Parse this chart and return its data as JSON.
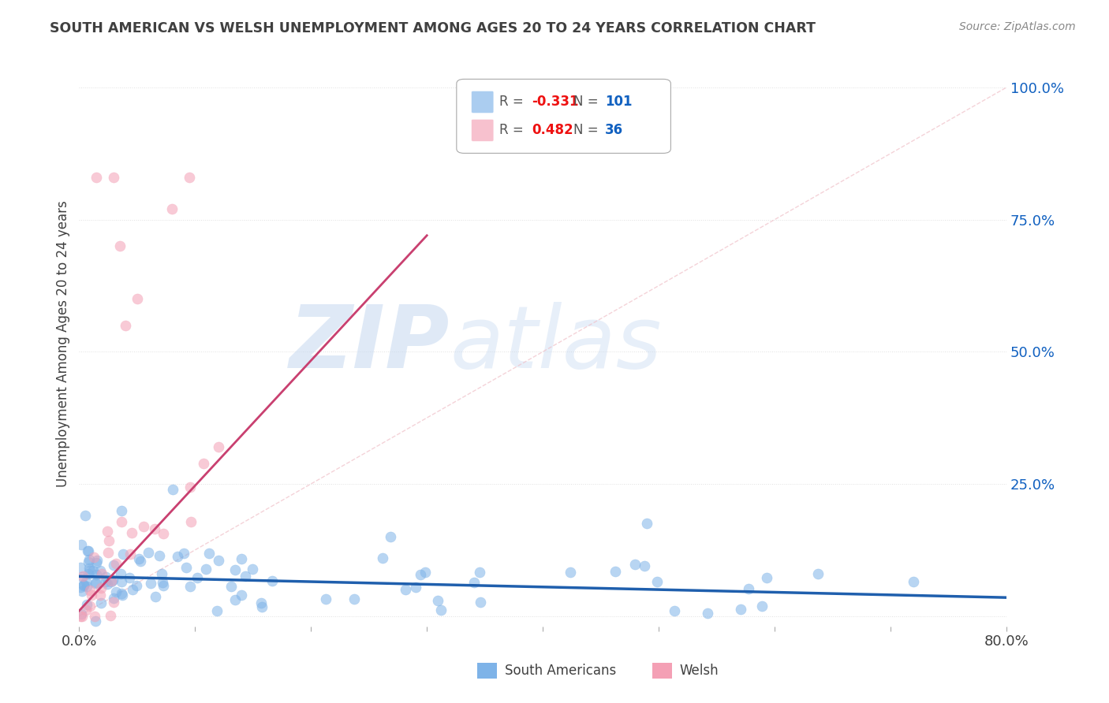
{
  "title": "SOUTH AMERICAN VS WELSH UNEMPLOYMENT AMONG AGES 20 TO 24 YEARS CORRELATION CHART",
  "source": "Source: ZipAtlas.com",
  "ylabel": "Unemployment Among Ages 20 to 24 years",
  "xlim": [
    0.0,
    0.8
  ],
  "ylim": [
    -0.02,
    1.05
  ],
  "blue_color": "#7EB3E8",
  "pink_color": "#F4A0B5",
  "blue_line_color": "#1F5FAD",
  "pink_line_color": "#C94070",
  "ref_line_color": "#F0C0C8",
  "grid_color": "#DDDDDD",
  "background_color": "#FFFFFF",
  "title_color": "#404040",
  "source_color": "#888888",
  "watermark_zip_color": "#C5D8F0",
  "watermark_atlas_color": "#C5D8F0",
  "legend_R_color": "#EE1111",
  "legend_N_color": "#1060C0",
  "legend_label_color": "#555555",
  "blue_N": 101,
  "pink_N": 36,
  "blue_R": -0.331,
  "pink_R": 0.482,
  "blue_trend_x": [
    0.0,
    0.8
  ],
  "blue_trend_y": [
    0.075,
    0.035
  ],
  "pink_trend_x": [
    0.0,
    0.3
  ],
  "pink_trend_y": [
    0.01,
    0.72
  ]
}
